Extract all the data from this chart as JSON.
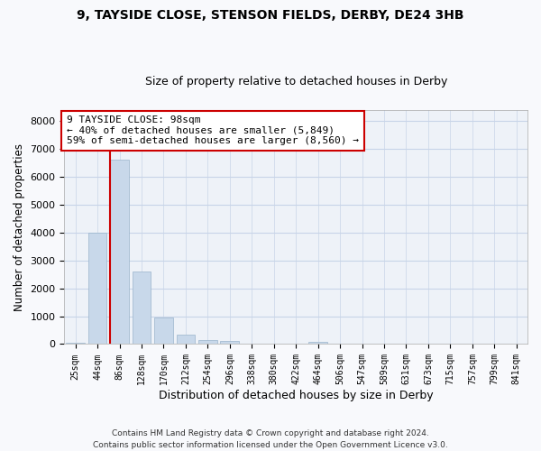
{
  "title": "9, TAYSIDE CLOSE, STENSON FIELDS, DERBY, DE24 3HB",
  "subtitle": "Size of property relative to detached houses in Derby",
  "xlabel": "Distribution of detached houses by size in Derby",
  "ylabel": "Number of detached properties",
  "footer": "Contains HM Land Registry data © Crown copyright and database right 2024.\nContains public sector information licensed under the Open Government Licence v3.0.",
  "bin_labels": [
    "25sqm",
    "44sqm",
    "86sqm",
    "128sqm",
    "170sqm",
    "212sqm",
    "254sqm",
    "296sqm",
    "338sqm",
    "380sqm",
    "422sqm",
    "464sqm",
    "506sqm",
    "547sqm",
    "589sqm",
    "631sqm",
    "673sqm",
    "715sqm",
    "757sqm",
    "799sqm",
    "841sqm"
  ],
  "bar_values": [
    55,
    3980,
    6600,
    2600,
    960,
    330,
    140,
    110,
    30,
    10,
    0,
    65,
    0,
    0,
    0,
    0,
    0,
    0,
    0,
    0,
    0
  ],
  "bar_color": "#c8d8ea",
  "bar_edge_color": "#9ab4cc",
  "property_label": "9 TAYSIDE CLOSE: 98sqm",
  "annotation_line1": "← 40% of detached houses are smaller (5,849)",
  "annotation_line2": "59% of semi-detached houses are larger (8,560) →",
  "red_line_color": "#cc0000",
  "annotation_box_color": "#ffffff",
  "annotation_box_edge": "#cc0000",
  "ylim": [
    0,
    8400
  ],
  "yticks": [
    0,
    1000,
    2000,
    3000,
    4000,
    5000,
    6000,
    7000,
    8000
  ],
  "grid_color": "#c8d4e8",
  "bg_color": "#f0f4fa",
  "plot_bg_color": "#eef2f8"
}
